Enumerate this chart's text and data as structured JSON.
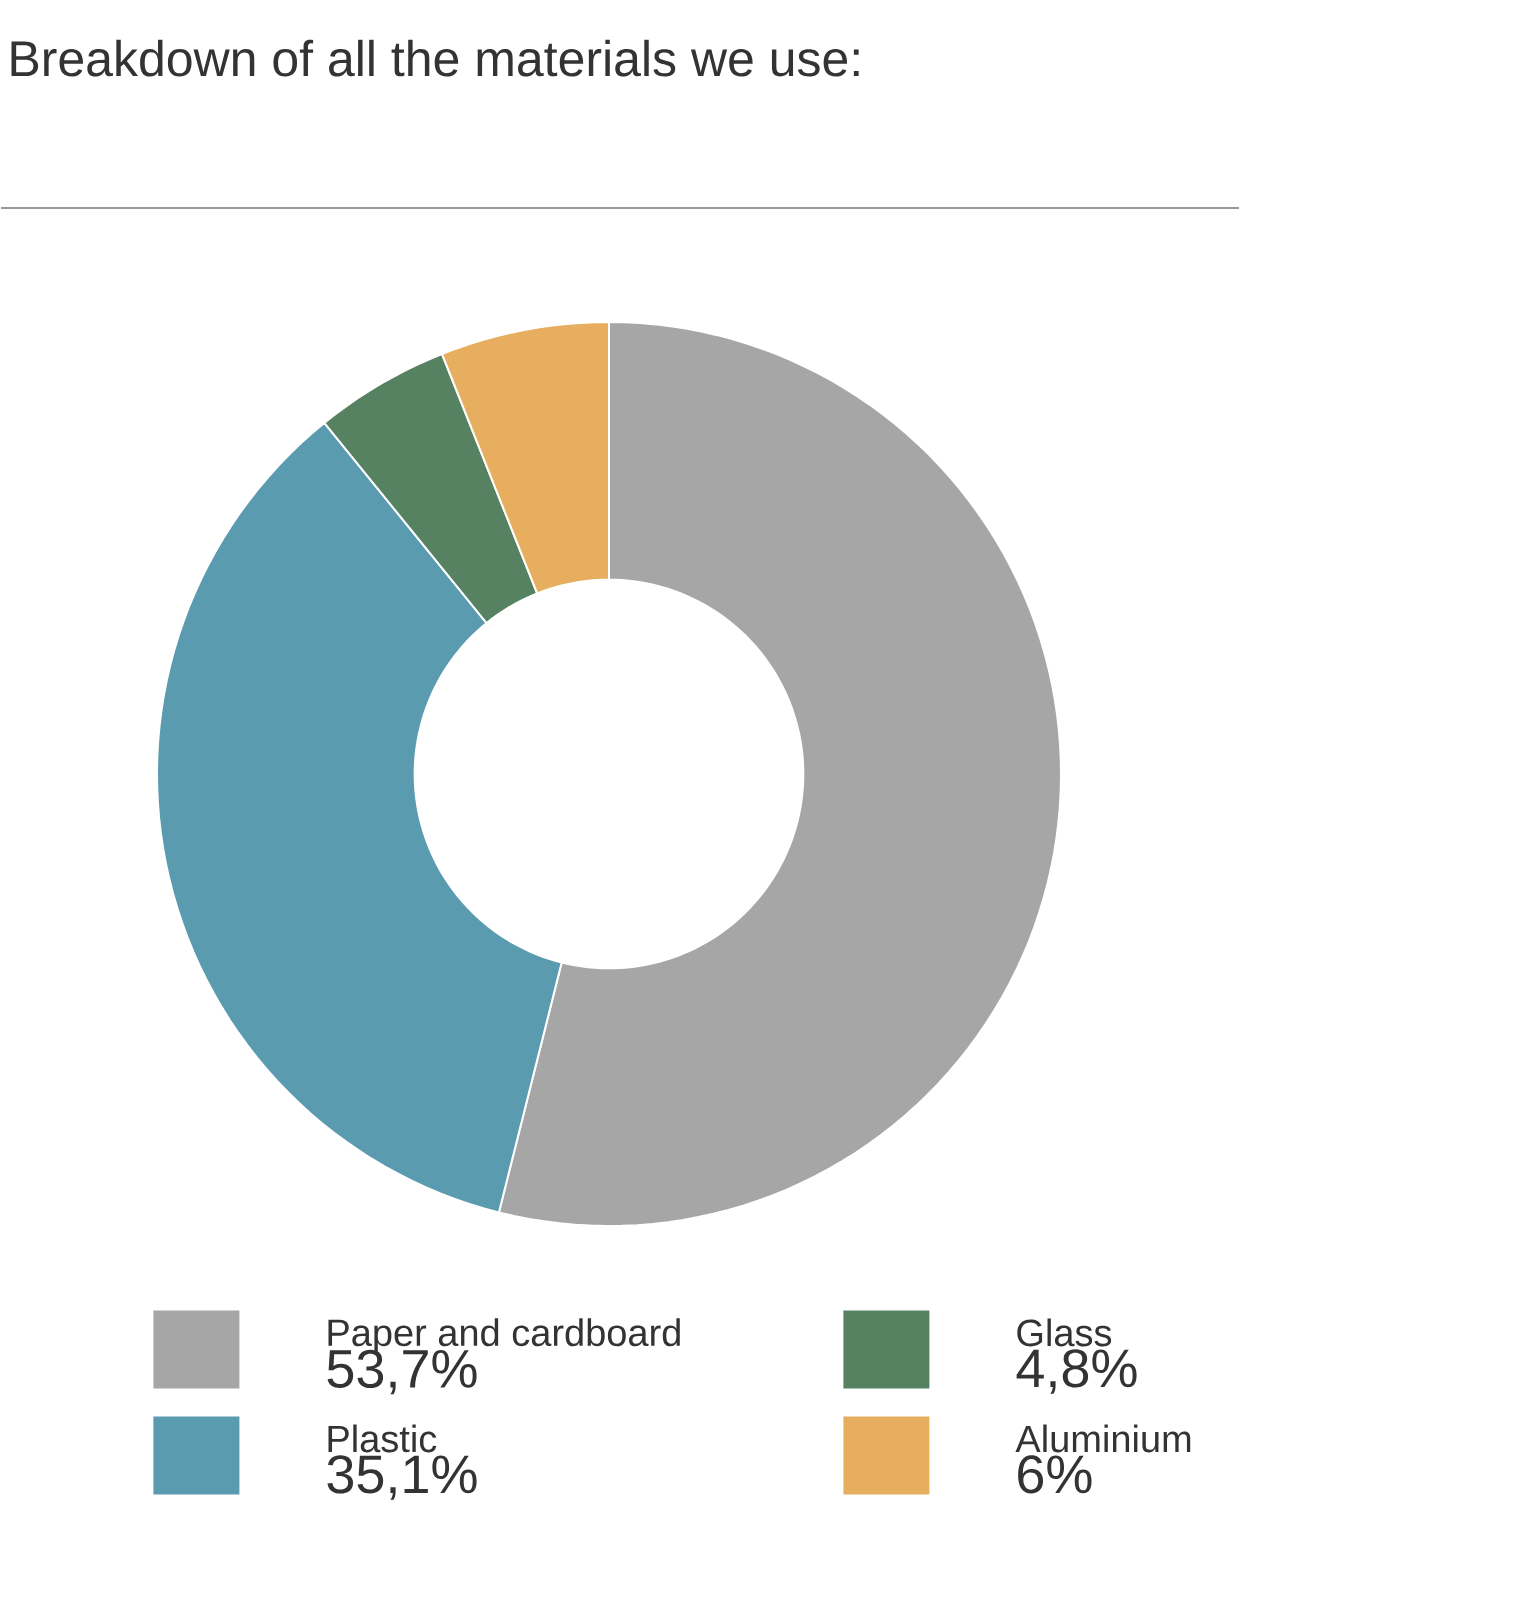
{
  "chart_data": {
    "type": "donut",
    "title": "Breakdown of all the materials we use:",
    "categories": [
      "Paper and cardboard",
      "Plastic",
      "Glass",
      "Aluminium"
    ],
    "values": [
      53.7,
      35.1,
      4.8,
      6
    ],
    "colors": [
      "#a6a6a6",
      "#5a9bb0",
      "#568262",
      "#e6ae5e"
    ],
    "value_labels": [
      "53,7%",
      "35,1%",
      "4,8%",
      "6%"
    ],
    "legend": "bottom"
  }
}
